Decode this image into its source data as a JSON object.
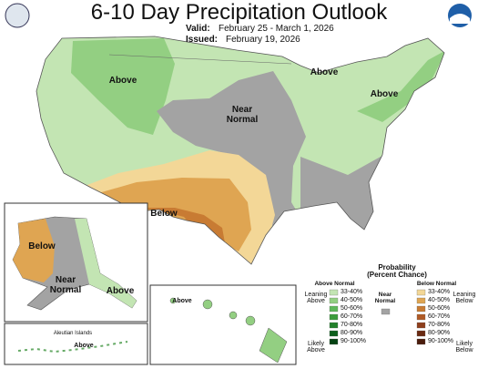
{
  "header": {
    "title": "6-10 Day Precipitation Outlook",
    "valid_label": "Valid:",
    "valid": "February 25 - March 1, 2026",
    "issued_label": "Issued:",
    "issued": "February 19, 2026"
  },
  "map_labels": [
    "Above",
    "Near Normal",
    "Above",
    "Above",
    "Below"
  ],
  "alaska_labels": [
    "Below",
    "Near Normal",
    "Above"
  ],
  "hawaii_label": "Above",
  "aleutian": {
    "title": "Aleutian Islands",
    "label": "Above"
  },
  "legend": {
    "title": "Probability (Percent Chance)",
    "above": {
      "heading": "Above Normal",
      "leaning": "Leaning Above",
      "likely": "Likely Above",
      "ranges": [
        "33-40%",
        "40-50%",
        "50-60%",
        "60-70%",
        "70-80%",
        "80-90%",
        "90-100%"
      ],
      "colors": [
        "#c3e5b3",
        "#93cf82",
        "#5fb85b",
        "#3c9c3c",
        "#22802b",
        "#0e601d",
        "#044213"
      ]
    },
    "near": {
      "heading": "Near Normal",
      "color": "#a3a3a3"
    },
    "below": {
      "heading": "Below Normal",
      "leaning": "Leaning Below",
      "likely": "Likely Below",
      "ranges": [
        "33-40%",
        "40-50%",
        "50-60%",
        "60-70%",
        "70-80%",
        "80-90%",
        "90-100%"
      ],
      "colors": [
        "#f3d797",
        "#dfa552",
        "#c87b33",
        "#b05a26",
        "#8e3e1c",
        "#6a2a12",
        "#4a1c0c"
      ]
    }
  }
}
